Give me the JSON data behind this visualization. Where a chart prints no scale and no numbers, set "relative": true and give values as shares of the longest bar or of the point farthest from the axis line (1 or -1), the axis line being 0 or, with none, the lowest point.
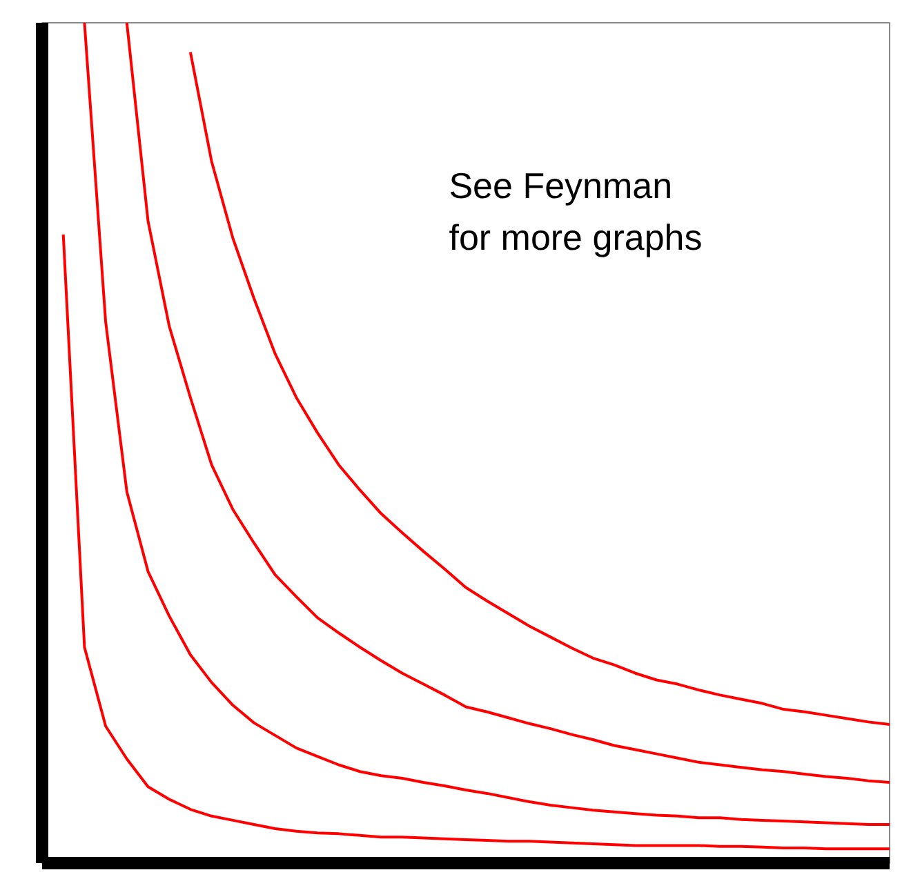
{
  "chart_data": {
    "type": "line",
    "relative": true,
    "grid": false,
    "categories": [
      null,
      null,
      null,
      null,
      null,
      null,
      null,
      null,
      null,
      null,
      null,
      null,
      null,
      null,
      null,
      null,
      null,
      null,
      null,
      null,
      null,
      null,
      null,
      null,
      null,
      null,
      null,
      null,
      null,
      null,
      null,
      null,
      null,
      null,
      null,
      null,
      null,
      null,
      null,
      null,
      null
    ],
    "annotations": [
      "See Feynman\nfor more graphs"
    ],
    "series": [
      {
        "color": "#ff0000",
        "values": [
          null,
          0.748,
          0.257,
          0.163,
          0.124,
          0.091,
          0.076,
          0.064,
          0.056,
          0.051,
          0.046,
          0.041,
          0.038,
          0.036,
          0.035,
          0.033,
          0.031,
          0.031,
          0.03,
          0.029,
          0.028,
          0.027,
          0.026,
          0.026,
          0.025,
          0.024,
          0.023,
          0.022,
          0.021,
          0.021,
          0.021,
          0.021,
          0.02,
          0.02,
          0.019,
          0.018,
          0.018,
          0.017,
          0.017,
          0.017,
          0.017
        ]
      },
      {
        "color": "#ff0000",
        "values": [
          null,
          null,
          1,
          0.644,
          0.442,
          0.347,
          0.294,
          0.248,
          0.215,
          0.188,
          0.167,
          0.152,
          0.137,
          0.127,
          0.117,
          0.109,
          0.104,
          0.101,
          0.096,
          0.092,
          0.087,
          0.083,
          0.078,
          0.073,
          0.069,
          0.066,
          0.063,
          0.061,
          0.059,
          0.057,
          0.056,
          0.054,
          0.054,
          0.052,
          0.051,
          0.05,
          0.049,
          0.048,
          0.047,
          0.046,
          0.046
        ]
      },
      {
        "color": "#ff0000",
        "values": [
          null,
          null,
          null,
          null,
          1,
          0.764,
          0.639,
          0.554,
          0.474,
          0.421,
          0.381,
          0.343,
          0.317,
          0.292,
          0.274,
          0.257,
          0.241,
          0.226,
          0.213,
          0.2,
          0.186,
          0.18,
          0.173,
          0.166,
          0.16,
          0.153,
          0.147,
          0.14,
          0.135,
          0.13,
          0.125,
          0.12,
          0.117,
          0.114,
          0.111,
          0.109,
          0.106,
          0.103,
          0.101,
          0.098,
          0.096
        ]
      },
      {
        "color": "#ff0000",
        "values": [
          null,
          null,
          null,
          null,
          null,
          null,
          null,
          0.965,
          0.835,
          0.744,
          0.672,
          0.606,
          0.554,
          0.512,
          0.474,
          0.444,
          0.416,
          0.393,
          0.371,
          0.35,
          0.328,
          0.312,
          0.297,
          0.282,
          0.269,
          0.256,
          0.244,
          0.236,
          0.226,
          0.218,
          0.213,
          0.206,
          0.2,
          0.195,
          0.19,
          0.183,
          0.18,
          0.176,
          0.172,
          0.168,
          0.165
        ]
      }
    ]
  }
}
